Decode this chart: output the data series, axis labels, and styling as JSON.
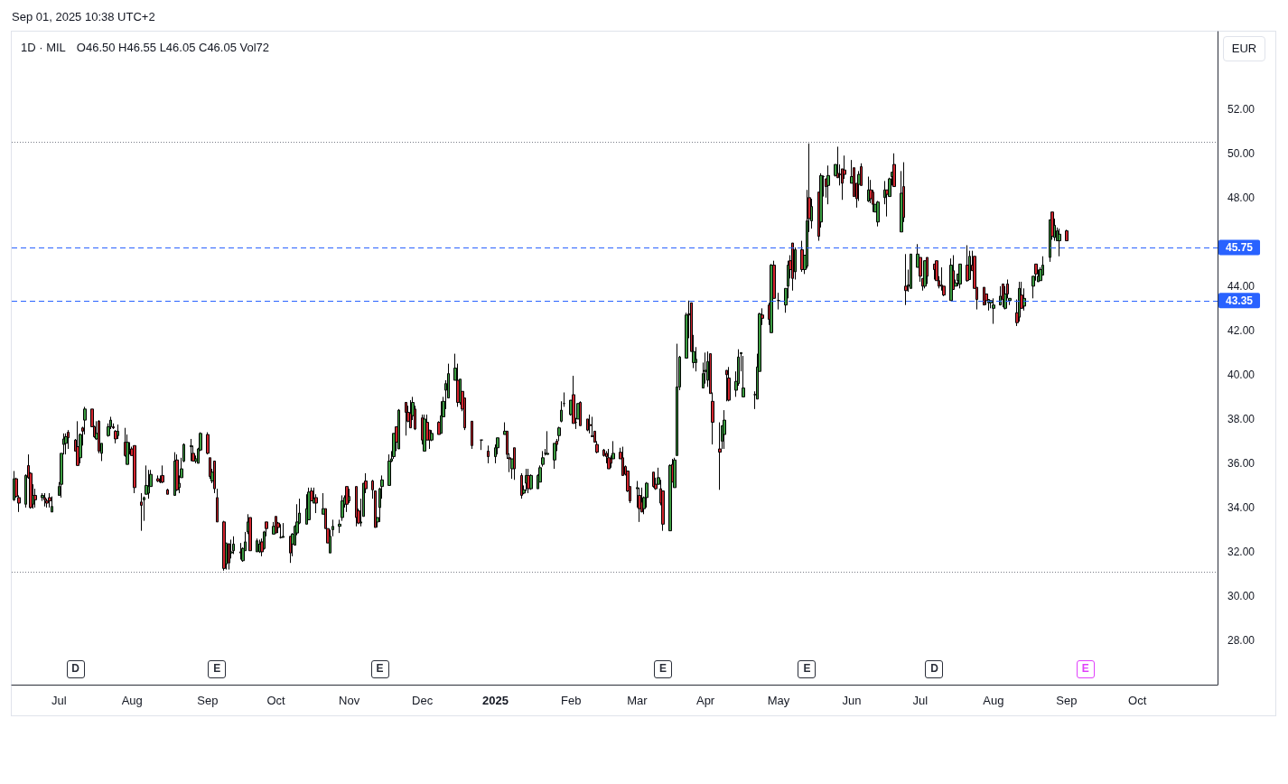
{
  "chart_data": {
    "type": "candlestick",
    "title": "1D · MIL",
    "subtitle": "Sep 01, 2025 10:38 UTC+2",
    "ylabel": "EUR",
    "annotations": [
      "O46.50 H46.55 L46.05 C46.05 Vol72",
      {
        "text": "D",
        "x": "2024-07-08"
      },
      {
        "text": "E",
        "x": "2024-09-06"
      },
      {
        "text": "E",
        "x": "2024-11-14"
      },
      {
        "text": "E",
        "x": "2025-03-14"
      },
      {
        "text": "E",
        "x": "2025-05-14"
      },
      {
        "text": "D",
        "x": "2025-07-07"
      },
      {
        "text": "E",
        "x": "2025-09-09"
      }
    ],
    "x": [
      "2024-06-12",
      "2024-06-13",
      "2024-06-14",
      "2024-06-17",
      "2024-06-18",
      "2024-06-19",
      "2024-06-20",
      "2024-06-21",
      "2024-06-24",
      "2024-06-25",
      "2024-06-26",
      "2024-06-27",
      "2024-06-28",
      "2024-07-01",
      "2024-07-02",
      "2024-07-03",
      "2024-07-04",
      "2024-07-05",
      "2024-07-08",
      "2024-07-09",
      "2024-07-10",
      "2024-07-11",
      "2024-07-12",
      "2024-07-15",
      "2024-07-16",
      "2024-07-17",
      "2024-07-18",
      "2024-07-19",
      "2024-07-22",
      "2024-07-23",
      "2024-07-24",
      "2024-07-25",
      "2024-07-26",
      "2024-07-29",
      "2024-07-30",
      "2024-07-31",
      "2024-08-01",
      "2024-08-02",
      "2024-08-05",
      "2024-08-06",
      "2024-08-07",
      "2024-08-08",
      "2024-08-09",
      "2024-08-12",
      "2024-08-13",
      "2024-08-14",
      "2024-08-16",
      "2024-08-19",
      "2024-08-20",
      "2024-08-21",
      "2024-08-22",
      "2024-08-23",
      "2024-08-26",
      "2024-08-27",
      "2024-08-28",
      "2024-08-29",
      "2024-08-30",
      "2024-09-02",
      "2024-09-03",
      "2024-09-04",
      "2024-09-05",
      "2024-09-06",
      "2024-09-09",
      "2024-09-10",
      "2024-09-11",
      "2024-09-12",
      "2024-09-13",
      "2024-09-16",
      "2024-09-17",
      "2024-09-18",
      "2024-09-19",
      "2024-09-20",
      "2024-09-23",
      "2024-09-24",
      "2024-09-25",
      "2024-09-26",
      "2024-09-27",
      "2024-09-30",
      "2024-10-01",
      "2024-10-02",
      "2024-10-03",
      "2024-10-04",
      "2024-10-07",
      "2024-10-08",
      "2024-10-09",
      "2024-10-10",
      "2024-10-11",
      "2024-10-14",
      "2024-10-15",
      "2024-10-16",
      "2024-10-17",
      "2024-10-18",
      "2024-10-21",
      "2024-10-22",
      "2024-10-23",
      "2024-10-24",
      "2024-10-25",
      "2024-10-28",
      "2024-10-29",
      "2024-10-30",
      "2024-10-31",
      "2024-11-01",
      "2024-11-04",
      "2024-11-05",
      "2024-11-06",
      "2024-11-07",
      "2024-11-08",
      "2024-11-11",
      "2024-11-12",
      "2024-11-13",
      "2024-11-14",
      "2024-11-15",
      "2024-11-18",
      "2024-11-19",
      "2024-11-20",
      "2024-11-21",
      "2024-11-22",
      "2024-11-25",
      "2024-11-26",
      "2024-11-27",
      "2024-11-28",
      "2024-11-29",
      "2024-12-02",
      "2024-12-03",
      "2024-12-04",
      "2024-12-05",
      "2024-12-06",
      "2024-12-09",
      "2024-12-10",
      "2024-12-11",
      "2024-12-12",
      "2024-12-13",
      "2024-12-16",
      "2024-12-17",
      "2024-12-18",
      "2024-12-19",
      "2024-12-20",
      "2024-12-23",
      "2024-12-27",
      "2024-12-30",
      "2025-01-02",
      "2025-01-03",
      "2025-01-06",
      "2025-01-07",
      "2025-01-08",
      "2025-01-09",
      "2025-01-10",
      "2025-01-13",
      "2025-01-14",
      "2025-01-15",
      "2025-01-16",
      "2025-01-17",
      "2025-01-20",
      "2025-01-21",
      "2025-01-22",
      "2025-01-23",
      "2025-01-24",
      "2025-01-27",
      "2025-01-28",
      "2025-01-29",
      "2025-01-30",
      "2025-01-31",
      "2025-02-03",
      "2025-02-04",
      "2025-02-05",
      "2025-02-06",
      "2025-02-07",
      "2025-02-10",
      "2025-02-11",
      "2025-02-12",
      "2025-02-13",
      "2025-02-14",
      "2025-02-17",
      "2025-02-18",
      "2025-02-19",
      "2025-02-20",
      "2025-02-21",
      "2025-02-24",
      "2025-02-25",
      "2025-02-26",
      "2025-02-27",
      "2025-02-28",
      "2025-03-03",
      "2025-03-04",
      "2025-03-05",
      "2025-03-06",
      "2025-03-07",
      "2025-03-10",
      "2025-03-11",
      "2025-03-12",
      "2025-03-13",
      "2025-03-14",
      "2025-03-17",
      "2025-03-18",
      "2025-03-19",
      "2025-03-20",
      "2025-03-21",
      "2025-03-24",
      "2025-03-25",
      "2025-03-26",
      "2025-03-27",
      "2025-03-28",
      "2025-03-31",
      "2025-04-01",
      "2025-04-02",
      "2025-04-03",
      "2025-04-04",
      "2025-04-07",
      "2025-04-08",
      "2025-04-09",
      "2025-04-10",
      "2025-04-11",
      "2025-04-14",
      "2025-04-15",
      "2025-04-16",
      "2025-04-17",
      "2025-04-22",
      "2025-04-23",
      "2025-04-24",
      "2025-04-25",
      "2025-04-28",
      "2025-04-29",
      "2025-04-30",
      "2025-05-02",
      "2025-05-05",
      "2025-05-06",
      "2025-05-07",
      "2025-05-08",
      "2025-05-09",
      "2025-05-12",
      "2025-05-13",
      "2025-05-14",
      "2025-05-15",
      "2025-05-16",
      "2025-05-19",
      "2025-05-20",
      "2025-05-21",
      "2025-05-22",
      "2025-05-23",
      "2025-05-26",
      "2025-05-27",
      "2025-05-28",
      "2025-05-29",
      "2025-05-30",
      "2025-06-02",
      "2025-06-03",
      "2025-06-04",
      "2025-06-05",
      "2025-06-06",
      "2025-06-09",
      "2025-06-10",
      "2025-06-11",
      "2025-06-12",
      "2025-06-13",
      "2025-06-16",
      "2025-06-17",
      "2025-06-18",
      "2025-06-19",
      "2025-06-20",
      "2025-06-23",
      "2025-06-24",
      "2025-06-25",
      "2025-06-26",
      "2025-06-27",
      "2025-06-30",
      "2025-07-01",
      "2025-07-02",
      "2025-07-03",
      "2025-07-04",
      "2025-07-07",
      "2025-07-08",
      "2025-07-09",
      "2025-07-10",
      "2025-07-11",
      "2025-07-14",
      "2025-07-15",
      "2025-07-16",
      "2025-07-17",
      "2025-07-18",
      "2025-07-21",
      "2025-07-22",
      "2025-07-23",
      "2025-07-24",
      "2025-07-25",
      "2025-07-28",
      "2025-07-29",
      "2025-07-30",
      "2025-07-31",
      "2025-08-01",
      "2025-08-04",
      "2025-08-05",
      "2025-08-06",
      "2025-08-07",
      "2025-08-08",
      "2025-08-11",
      "2025-08-12",
      "2025-08-13",
      "2025-08-14",
      "2025-08-18",
      "2025-08-19",
      "2025-08-20",
      "2025-08-21",
      "2025-08-22",
      "2025-08-25",
      "2025-08-26",
      "2025-08-27",
      "2025-08-28",
      "2025-08-29",
      "2025-09-01"
    ],
    "ohlc": [
      [
        34.35,
        35.65,
        34.3,
        35.3
      ],
      [
        35.3,
        35.35,
        34.45,
        34.5
      ],
      [
        34.45,
        34.55,
        33.8,
        34.2
      ],
      [
        34.15,
        35.5,
        34.0,
        35.45
      ],
      [
        35.9,
        36.4,
        35.3,
        35.35
      ],
      [
        35.55,
        35.6,
        33.95,
        34.0
      ],
      [
        34.15,
        35.05,
        33.95,
        34.55
      ],
      [
        34.55,
        34.85,
        34.0,
        34.35
      ],
      [
        34.45,
        34.65,
        34.3,
        34.55
      ],
      [
        34.45,
        34.65,
        34.05,
        34.35
      ],
      [
        34.3,
        34.4,
        34.0,
        34.2
      ],
      [
        34.45,
        34.65,
        34.0,
        34.3
      ],
      [
        33.8,
        34.5,
        33.8,
        34.05
      ],
      [
        34.55,
        35.15,
        34.55,
        34.95
      ],
      [
        35.05,
        36.45,
        34.45,
        36.45
      ],
      [
        36.85,
        37.35,
        36.4,
        37.1
      ],
      [
        36.9,
        37.35,
        36.4,
        37.2
      ],
      [
        37.4,
        37.5,
        36.65,
        37.15
      ],
      [
        37.05,
        37.1,
        36.55,
        36.55
      ],
      [
        36.75,
        37.9,
        35.9,
        35.9
      ],
      [
        36.25,
        37.35,
        36.0,
        37.3
      ],
      [
        37.6,
        37.65,
        36.8,
        37.45
      ],
      [
        37.95,
        38.55,
        37.3,
        38.45
      ],
      [
        38.45,
        38.45,
        37.65,
        37.65
      ],
      [
        37.65,
        37.7,
        37.15,
        37.2
      ],
      [
        37.1,
        37.9,
        37.05,
        37.35
      ],
      [
        37.9,
        37.95,
        36.45,
        36.55
      ],
      [
        36.45,
        36.9,
        36.1,
        36.9
      ],
      [
        37.25,
        37.8,
        37.2,
        37.65
      ],
      [
        37.65,
        38.1,
        37.55,
        37.95
      ],
      [
        37.65,
        37.8,
        37.55,
        37.6
      ],
      [
        37.45,
        37.5,
        36.9,
        37.1
      ],
      [
        37.25,
        37.75,
        37.1,
        37.45
      ],
      [
        36.95,
        37.6,
        36.3,
        36.35
      ],
      [
        35.95,
        37.3,
        35.95,
        36.95
      ],
      [
        36.55,
        36.95,
        36.4,
        36.6
      ],
      [
        36.65,
        36.75,
        36.35,
        36.35
      ],
      [
        36.8,
        36.8,
        34.65,
        34.9
      ],
      [
        34.25,
        34.65,
        32.95,
        34.1
      ],
      [
        34.35,
        34.5,
        33.4,
        34.45
      ],
      [
        34.6,
        35.9,
        34.6,
        35.0
      ],
      [
        34.65,
        35.7,
        34.4,
        34.95
      ],
      [
        34.95,
        35.7,
        34.95,
        35.5
      ],
      [
        35.3,
        35.45,
        35.15,
        35.2
      ],
      [
        35.2,
        35.45,
        35.1,
        35.15
      ],
      [
        35.45,
        35.9,
        35.1,
        35.15
      ],
      [
        34.8,
        34.85,
        34.6,
        34.6
      ],
      [
        34.55,
        36.5,
        34.55,
        36.1
      ],
      [
        36.15,
        36.4,
        34.75,
        34.8
      ],
      [
        34.9,
        35.45,
        34.65,
        35.1
      ],
      [
        35.35,
        36.25,
        35.35,
        35.75
      ],
      [
        36.1,
        36.9,
        36.05,
        36.85
      ],
      [
        36.75,
        37.1,
        36.1,
        36.8
      ],
      [
        36.45,
        36.8,
        36.1,
        36.1
      ],
      [
        36.1,
        36.35,
        36.0,
        36.2
      ],
      [
        36.0,
        36.7,
        36.0,
        36.65
      ],
      [
        36.6,
        37.4,
        36.55,
        37.35
      ],
      [
        37.3,
        37.4,
        36.4,
        36.45
      ],
      [
        36.25,
        36.25,
        35.3,
        35.4
      ],
      [
        35.2,
        35.75,
        35.1,
        35.6
      ],
      [
        36.1,
        36.1,
        34.65,
        34.85
      ],
      [
        34.45,
        34.85,
        33.35,
        33.35
      ],
      [
        33.35,
        33.4,
        31.15,
        31.25
      ],
      [
        31.45,
        32.4,
        31.2,
        32.4
      ],
      [
        32.35,
        32.4,
        31.2,
        31.5
      ],
      [
        31.95,
        32.55,
        31.7,
        32.0
      ],
      [
        32.05,
        32.7,
        31.9,
        32.35
      ],
      [
        32.0,
        32.4,
        31.65,
        31.95
      ],
      [
        31.6,
        32.2,
        31.55,
        32.15
      ],
      [
        32.05,
        32.9,
        32.05,
        32.45
      ],
      [
        32.9,
        33.7,
        32.8,
        33.35
      ],
      [
        33.55,
        33.55,
        32.05,
        32.05
      ],
      [
        32.0,
        32.6,
        32.0,
        32.5
      ],
      [
        32.0,
        32.55,
        31.95,
        32.35
      ],
      [
        32.45,
        32.6,
        31.8,
        32.0
      ],
      [
        32.15,
        32.95,
        32.1,
        32.9
      ],
      [
        33.35,
        33.35,
        32.7,
        33.05
      ],
      [
        32.8,
        33.35,
        32.8,
        33.15
      ],
      [
        33.6,
        33.6,
        32.85,
        32.85
      ],
      [
        33.3,
        33.35,
        32.85,
        33.1
      ],
      [
        32.65,
        33.25,
        32.6,
        32.65
      ],
      [
        32.65,
        33.3,
        32.65,
        32.7
      ],
      [
        32.7,
        32.7,
        31.5,
        31.95
      ],
      [
        32.35,
        32.85,
        31.8,
        32.8
      ],
      [
        32.3,
        33.2,
        32.3,
        33.15
      ],
      [
        32.85,
        34.15,
        32.75,
        33.35
      ],
      [
        33.3,
        34.4,
        33.25,
        33.75
      ],
      [
        33.25,
        34.6,
        33.25,
        33.95
      ],
      [
        33.45,
        34.9,
        33.45,
        34.7
      ],
      [
        34.75,
        34.9,
        34.3,
        34.3
      ],
      [
        34.2,
        34.9,
        34.2,
        34.4
      ],
      [
        34.45,
        34.6,
        33.75,
        34.2
      ],
      [
        33.7,
        34.65,
        33.7,
        33.95
      ],
      [
        33.95,
        33.95,
        33.05,
        33.05
      ],
      [
        33.05,
        33.05,
        32.4,
        32.4
      ],
      [
        31.95,
        33.0,
        31.95,
        32.7
      ],
      [
        33.0,
        33.45,
        32.7,
        33.15
      ],
      [
        33.15,
        33.45,
        32.85,
        33.25
      ],
      [
        33.55,
        34.55,
        33.4,
        34.3
      ],
      [
        34.15,
        34.55,
        34.0,
        34.45
      ],
      [
        34.95,
        34.95,
        33.8,
        34.15
      ],
      [
        34.3,
        34.85,
        34.2,
        34.5
      ],
      [
        34.95,
        34.95,
        33.15,
        33.55
      ],
      [
        33.85,
        33.95,
        33.25,
        33.3
      ],
      [
        33.3,
        34.4,
        33.15,
        33.35
      ],
      [
        33.6,
        35.1,
        33.6,
        35.1
      ],
      [
        35.2,
        35.55,
        34.65,
        34.85
      ],
      [
        35.2,
        35.25,
        34.4,
        34.8
      ],
      [
        34.75,
        34.75,
        33.1,
        33.1
      ],
      [
        33.35,
        33.55,
        33.1,
        33.55
      ],
      [
        34.0,
        34.9,
        33.35,
        34.85
      ],
      [
        34.95,
        35.45,
        34.4,
        35.25
      ],
      [
        35.0,
        36.4,
        35.0,
        36.1
      ],
      [
        36.1,
        36.55,
        36.05,
        36.2
      ],
      [
        36.3,
        37.35,
        36.2,
        37.35
      ],
      [
        37.65,
        37.65,
        36.55,
        36.95
      ],
      [
        36.65,
        38.45,
        36.65,
        38.4
      ],
      [
        38.75,
        38.75,
        37.25,
        38.3
      ],
      [
        38.3,
        38.6,
        37.85,
        37.9
      ],
      [
        38.25,
        38.85,
        37.6,
        37.6
      ],
      [
        38.15,
        39.0,
        37.95,
        38.75
      ],
      [
        38.45,
        38.6,
        37.5,
        37.55
      ],
      [
        38.05,
        38.2,
        36.85,
        37.05
      ],
      [
        36.55,
        38.2,
        36.55,
        38.0
      ],
      [
        37.85,
        38.2,
        37.05,
        37.05
      ],
      [
        37.5,
        37.5,
        36.65,
        37.05
      ],
      [
        37.05,
        37.5,
        37.0,
        37.35
      ],
      [
        37.85,
        37.9,
        37.3,
        37.3
      ],
      [
        37.35,
        38.8,
        37.35,
        38.15
      ],
      [
        38.1,
        39.0,
        38.1,
        38.8
      ],
      [
        39.3,
        39.75,
        38.45,
        39.6
      ],
      [
        38.95,
        40.5,
        38.95,
        40.05
      ],
      [
        39.75,
        40.95,
        39.75,
        40.3
      ],
      [
        39.75,
        40.5,
        38.55,
        38.75
      ],
      [
        38.75,
        39.8,
        38.65,
        39.8
      ],
      [
        39.25,
        39.25,
        38.35,
        38.45
      ],
      [
        38.95,
        38.95,
        37.5,
        37.6
      ],
      [
        37.9,
        37.9,
        36.65,
        36.8
      ],
      [
        37.05,
        37.05,
        36.6,
        37.05
      ],
      [
        36.55,
        36.8,
        36.0,
        36.3
      ],
      [
        36.3,
        36.85,
        36.0,
        36.7
      ],
      [
        36.7,
        37.15,
        36.4,
        37.15
      ],
      [
        37.3,
        37.85,
        37.3,
        37.45
      ],
      [
        37.45,
        37.45,
        36.2,
        36.4
      ],
      [
        36.25,
        36.45,
        35.6,
        36.2
      ],
      [
        35.75,
        36.2,
        35.3,
        36.2
      ],
      [
        36.7,
        36.7,
        35.25,
        35.75
      ],
      [
        35.45,
        35.55,
        34.4,
        34.55
      ],
      [
        34.65,
        35.0,
        34.6,
        34.8
      ],
      [
        35.1,
        35.75,
        34.75,
        35.45
      ],
      [
        35.45,
        35.75,
        34.65,
        34.85
      ],
      [
        34.85,
        35.5,
        34.8,
        35.45
      ],
      [
        34.85,
        35.5,
        34.85,
        35.45
      ],
      [
        35.15,
        35.9,
        35.15,
        35.8
      ],
      [
        35.95,
        36.55,
        35.85,
        36.25
      ],
      [
        36.45,
        36.65,
        36.35,
        36.45
      ],
      [
        36.4,
        37.45,
        36.4,
        36.45
      ],
      [
        36.15,
        36.9,
        35.75,
        36.9
      ],
      [
        37.0,
        37.1,
        36.55,
        36.85
      ],
      [
        37.25,
        37.65,
        37.0,
        37.6
      ],
      [
        37.9,
        38.8,
        37.85,
        38.4
      ],
      [
        38.7,
        39.2,
        38.55,
        38.7
      ],
      [
        38.2,
        38.85,
        38.15,
        38.85
      ],
      [
        39.1,
        39.95,
        37.8,
        37.8
      ],
      [
        37.85,
        38.05,
        37.55,
        37.85
      ],
      [
        38.0,
        38.7,
        38.0,
        38.7
      ],
      [
        38.75,
        38.8,
        37.7,
        37.7
      ],
      [
        38.0,
        38.0,
        37.45,
        37.5
      ],
      [
        37.75,
        38.2,
        37.35,
        37.7
      ],
      [
        37.25,
        38.1,
        37.2,
        37.2
      ],
      [
        37.45,
        37.45,
        36.95,
        36.95
      ],
      [
        36.85,
        37.0,
        36.45,
        36.5
      ],
      [
        36.6,
        36.65,
        36.3,
        36.35
      ],
      [
        36.45,
        36.55,
        36.0,
        36.3
      ],
      [
        36.25,
        36.65,
        35.75,
        35.75
      ],
      [
        36.2,
        36.35,
        35.8,
        36.0
      ],
      [
        36.2,
        37.0,
        36.2,
        36.45
      ],
      [
        36.5,
        36.7,
        36.2,
        36.2
      ],
      [
        36.25,
        36.75,
        35.45,
        35.45
      ],
      [
        35.85,
        35.9,
        35.45,
        35.5
      ],
      [
        35.65,
        35.65,
        34.7,
        34.75
      ],
      [
        34.95,
        34.95,
        34.2,
        34.3
      ],
      [
        34.85,
        35.2,
        34.0,
        34.9
      ],
      [
        34.55,
        34.9,
        33.35,
        33.95
      ],
      [
        34.25,
        34.9,
        33.8,
        33.8
      ],
      [
        33.95,
        34.5,
        33.7,
        34.45
      ],
      [
        34.45,
        35.15,
        34.0,
        35.1
      ],
      [
        35.6,
        35.6,
        34.9,
        34.95
      ],
      [
        35.05,
        35.35,
        34.8,
        34.85
      ],
      [
        35.05,
        35.8,
        35.05,
        35.35
      ],
      [
        34.85,
        35.25,
        34.1,
        34.2
      ],
      [
        34.75,
        34.75,
        32.95,
        33.25
      ],
      [
        32.95,
        35.95,
        32.95,
        35.9
      ],
      [
        35.95,
        36.2,
        35.15,
        35.15
      ],
      [
        34.9,
        36.25,
        34.9,
        36.15
      ],
      [
        36.35,
        41.4,
        36.35,
        39.45
      ],
      [
        39.45,
        40.85,
        39.3,
        40.8
      ],
      [
        40.75,
        42.8,
        40.75,
        42.7
      ],
      [
        42.75,
        43.35,
        41.65,
        42.7
      ],
      [
        43.25,
        43.25,
        41.05,
        41.05
      ],
      [
        40.55,
        41.8,
        40.3,
        41.05
      ],
      [
        40.55,
        41.25,
        40.15,
        40.7
      ],
      [
        39.4,
        40.55,
        39.4,
        40.05
      ],
      [
        40.15,
        41.0,
        39.6,
        40.2
      ],
      [
        39.75,
        41.05,
        39.45,
        40.6
      ],
      [
        40.95,
        40.95,
        39.15,
        39.15
      ],
      [
        38.8,
        39.2,
        36.85,
        37.85
      ],
      [
        36.65,
        37.85,
        34.8,
        36.5
      ],
      [
        37.0,
        37.7,
        36.65,
        37.7
      ],
      [
        37.3,
        38.4,
        36.65,
        37.95
      ],
      [
        40.2,
        40.2,
        38.8,
        40.0
      ],
      [
        39.85,
        40.35,
        38.8,
        38.85
      ],
      [
        39.3,
        40.15,
        39.0,
        39.7
      ],
      [
        39.6,
        41.15,
        39.5,
        40.8
      ],
      [
        40.95,
        41.0,
        40.15,
        41.0
      ],
      [
        39.0,
        40.85,
        39.0,
        39.4
      ],
      [
        39.1,
        39.25,
        38.45,
        39.1
      ],
      [
        38.9,
        40.95,
        38.9,
        40.35
      ],
      [
        40.15,
        42.8,
        40.15,
        42.75
      ],
      [
        42.7,
        43.0,
        42.25,
        42.55
      ],
      [
        43.15,
        43.25,
        42.25,
        42.5
      ],
      [
        41.9,
        45.0,
        41.9,
        44.95
      ],
      [
        44.95,
        45.15,
        43.45,
        43.45
      ],
      [
        43.35,
        43.7,
        42.95,
        43.35
      ],
      [
        43.15,
        43.9,
        42.8,
        43.9
      ],
      [
        44.0,
        45.15,
        43.45,
        44.95
      ],
      [
        45.15,
        45.4,
        44.35,
        44.75
      ],
      [
        45.95,
        45.95,
        43.8,
        44.35
      ],
      [
        44.65,
        45.75,
        44.3,
        45.65
      ],
      [
        45.65,
        46.05,
        44.65,
        44.75
      ],
      [
        44.75,
        45.4,
        44.55,
        45.4
      ],
      [
        44.9,
        48.35,
        44.8,
        46.95
      ],
      [
        48.0,
        50.45,
        46.45,
        47.05
      ],
      [
        46.95,
        47.95,
        46.6,
        47.6
      ],
      [
        48.25,
        48.25,
        46.05,
        46.25
      ],
      [
        46.9,
        49.1,
        46.65,
        49.0
      ],
      [
        48.95,
        49.0,
        48.05,
        48.95
      ],
      [
        48.85,
        48.85,
        48.0,
        48.5
      ],
      [
        48.55,
        49.45,
        47.7,
        49.0
      ],
      [
        49.0,
        49.5,
        48.95,
        49.5
      ],
      [
        49.1,
        50.3,
        48.9,
        48.9
      ],
      [
        49.05,
        49.5,
        48.55,
        49.05
      ],
      [
        49.3,
        49.3,
        47.9,
        48.65
      ],
      [
        49.25,
        49.9,
        48.85,
        49.05
      ],
      [
        48.65,
        49.7,
        48.65,
        48.95
      ],
      [
        49.35,
        49.35,
        48.05,
        48.05
      ],
      [
        48.65,
        48.65,
        47.55,
        47.95
      ],
      [
        48.6,
        49.2,
        47.85,
        49.05
      ],
      [
        49.4,
        49.55,
        48.55,
        48.55
      ],
      [
        47.85,
        48.95,
        47.8,
        48.35
      ],
      [
        48.35,
        48.8,
        47.75,
        47.95
      ],
      [
        48.25,
        48.35,
        47.35,
        47.7
      ],
      [
        47.35,
        47.7,
        47.35,
        47.7
      ],
      [
        46.9,
        47.85,
        46.7,
        47.8
      ],
      [
        48.0,
        48.75,
        47.7,
        48.35
      ],
      [
        48.35,
        48.35,
        47.15,
        48.15
      ],
      [
        48.05,
        48.9,
        48.05,
        48.85
      ],
      [
        48.95,
        49.15,
        48.55,
        49.15
      ],
      [
        49.5,
        50.0,
        48.5,
        48.5
      ],
      [
        46.45,
        49.2,
        46.45,
        48.2
      ],
      [
        48.5,
        49.6,
        46.9,
        47.1
      ],
      [
        44.0,
        45.45,
        43.15,
        43.8
      ],
      [
        44.0,
        44.75,
        43.75,
        44.05
      ],
      [
        43.9,
        45.45,
        43.9,
        45.45
      ],
      [
        44.85,
        45.9,
        44.85,
        45.45
      ],
      [
        45.3,
        45.3,
        44.2,
        44.45
      ],
      [
        44.35,
        44.35,
        43.8,
        44.0
      ],
      [
        44.0,
        45.15,
        43.9,
        45.15
      ],
      [
        45.3,
        45.3,
        44.1,
        44.45
      ],
      [
        45.0,
        45.0,
        44.3,
        44.75
      ],
      [
        45.15,
        45.15,
        44.25,
        44.25
      ],
      [
        44.25,
        44.45,
        43.9,
        44.0
      ],
      [
        44.05,
        44.85,
        43.8,
        44.0
      ],
      [
        44.0,
        44.0,
        43.55,
        43.6
      ],
      [
        43.35,
        45.25,
        43.35,
        44.95
      ],
      [
        44.7,
        45.4,
        43.85,
        43.85
      ],
      [
        44.0,
        44.3,
        44.0,
        44.15
      ],
      [
        44.25,
        44.55,
        44.0,
        44.55
      ],
      [
        44.1,
        45.0,
        43.9,
        45.0
      ],
      [
        44.95,
        45.85,
        44.2,
        44.25
      ],
      [
        44.3,
        45.6,
        44.3,
        45.35
      ],
      [
        44.95,
        45.6,
        44.7,
        44.7
      ],
      [
        45.35,
        45.35,
        43.9,
        43.9
      ],
      [
        43.95,
        43.95,
        42.95,
        43.4
      ],
      [
        43.95,
        43.95,
        43.15,
        43.15
      ],
      [
        43.65,
        43.65,
        43.15,
        43.35
      ],
      [
        43.25,
        43.4,
        42.9,
        43.4
      ],
      [
        43.25,
        43.35,
        43.0,
        43.35
      ],
      [
        43.0,
        43.45,
        42.3,
        43.15
      ],
      [
        43.15,
        44.0,
        43.15,
        43.55
      ],
      [
        44.1,
        44.1,
        43.05,
        43.4
      ],
      [
        43.0,
        44.0,
        42.95,
        43.65
      ],
      [
        44.1,
        44.3,
        43.45,
        43.65
      ],
      [
        43.35,
        43.45,
        43.15,
        43.45
      ],
      [
        42.8,
        43.4,
        42.2,
        42.35
      ],
      [
        42.6,
        44.2,
        42.4,
        43.9
      ],
      [
        43.6,
        44.2,
        43.0,
        43.0
      ],
      [
        43.1,
        43.9,
        42.9,
        43.45
      ],
      [
        44.0,
        44.45,
        43.45,
        44.45
      ],
      [
        45.0,
        45.0,
        44.25,
        44.55
      ],
      [
        44.2,
        44.75,
        44.2,
        44.45
      ],
      [
        44.25,
        44.85,
        44.25,
        44.75
      ],
      [
        44.5,
        45.35,
        44.5,
        44.95
      ],
      [
        45.3,
        47.0,
        45.1,
        47.0
      ],
      [
        47.35,
        47.35,
        46.1,
        46.25
      ],
      [
        46.2,
        47.05,
        46.05,
        46.75
      ],
      [
        46.05,
        46.65,
        46.05,
        46.5
      ],
      [
        46.05,
        46.6,
        45.35,
        46.35
      ],
      [
        46.5,
        46.55,
        46.05,
        46.05
      ]
    ],
    "colors": [
      "#3c9c41",
      "#d1262f",
      "#d1262f",
      "#3c9c41",
      "#d1262f",
      "#d1262f",
      "#3c9c41",
      "#d1262f",
      "#3c9c41",
      "#d1262f",
      "#d1262f",
      "#d1262f",
      "#3c9c41",
      "#3c9c41",
      "#3c9c41",
      "#3c9c41",
      "#3c9c41",
      "#d1262f",
      "#d1262f",
      "#d1262f",
      "#3c9c41",
      "#d1262f",
      "#3c9c41",
      "#d1262f",
      "#d1262f",
      "#3c9c41",
      "#d1262f",
      "#3c9c41",
      "#3c9c41",
      "#3c9c41",
      "#d1262f",
      "#d1262f",
      "#3c9c41",
      "#d1262f",
      "#3c9c41",
      "#3c9c41",
      "#d1262f",
      "#d1262f",
      "#d1262f",
      "#3c9c41",
      "#3c9c41",
      "#3c9c41",
      "#3c9c41",
      "#d1262f",
      "#d1262f",
      "#d1262f",
      "#d1262f",
      "#3c9c41",
      "#d1262f",
      "#3c9c41",
      "#3c9c41",
      "#3c9c41",
      "#3c9c41",
      "#d1262f",
      "#3c9c41",
      "#3c9c41",
      "#3c9c41",
      "#d1262f",
      "#d1262f",
      "#3c9c41",
      "#d1262f",
      "#d1262f",
      "#d1262f",
      "#3c9c41",
      "#d1262f",
      "#3c9c41",
      "#3c9c41",
      "#d1262f",
      "#3c9c41",
      "#3c9c41",
      "#3c9c41",
      "#d1262f",
      "#3c9c41",
      "#3c9c41",
      "#d1262f",
      "#3c9c41",
      "#d1262f",
      "#3c9c41",
      "#d1262f",
      "#d1262f",
      "#000000",
      "#3c9c41",
      "#d1262f",
      "#3c9c41",
      "#3c9c41",
      "#3c9c41",
      "#3c9c41",
      "#3c9c41",
      "#3c9c41",
      "#d1262f",
      "#3c9c41",
      "#d1262f",
      "#3c9c41",
      "#d1262f",
      "#d1262f",
      "#3c9c41",
      "#3c9c41",
      "#3c9c41",
      "#3c9c41",
      "#3c9c41",
      "#d1262f",
      "#3c9c41",
      "#d1262f",
      "#d1262f",
      "#3c9c41",
      "#3c9c41",
      "#d1262f",
      "#d1262f",
      "#d1262f",
      "#3c9c41",
      "#3c9c41",
      "#3c9c41",
      "#3c9c41",
      "#3c9c41",
      "#3c9c41",
      "#d1262f",
      "#3c9c41",
      "#d1262f",
      "#d1262f",
      "#d1262f",
      "#3c9c41",
      "#d1262f",
      "#d1262f",
      "#3c9c41",
      "#d1262f",
      "#d1262f",
      "#3c9c41",
      "#d1262f",
      "#3c9c41",
      "#3c9c41",
      "#3c9c41",
      "#3c9c41",
      "#3c9c41",
      "#d1262f",
      "#3c9c41",
      "#d1262f",
      "#d1262f",
      "#d1262f",
      "#000000",
      "#d1262f",
      "#3c9c41",
      "#3c9c41",
      "#3c9c41",
      "#d1262f",
      "#d1262f",
      "#3c9c41",
      "#d1262f",
      "#d1262f",
      "#3c9c41",
      "#3c9c41",
      "#d1262f",
      "#3c9c41",
      "#3c9c41",
      "#3c9c41",
      "#3c9c41",
      "#000000",
      "#3c9c41",
      "#3c9c41",
      "#d1262f",
      "#3c9c41",
      "#3c9c41",
      "#000000",
      "#3c9c41",
      "#d1262f",
      "#000000",
      "#3c9c41",
      "#d1262f",
      "#d1262f",
      "#d1262f",
      "#d1262f",
      "#d1262f",
      "#d1262f",
      "#d1262f",
      "#d1262f",
      "#d1262f",
      "#d1262f",
      "#3c9c41",
      "#d1262f",
      "#d1262f",
      "#d1262f",
      "#d1262f",
      "#d1262f",
      "#3c9c41",
      "#d1262f",
      "#d1262f",
      "#3c9c41",
      "#3c9c41",
      "#d1262f",
      "#d1262f",
      "#3c9c41",
      "#d1262f",
      "#d1262f",
      "#3c9c41",
      "#d1262f",
      "#3c9c41",
      "#3c9c41",
      "#3c9c41",
      "#3c9c41",
      "#d1262f",
      "#d1262f",
      "#3c9c41",
      "#3c9c41",
      "#3c9c41",
      "#3c9c41",
      "#3c9c41",
      "#d1262f",
      "#d1262f",
      "#d1262f",
      "#3c9c41",
      "#3c9c41",
      "#d1262f",
      "#d1262f",
      "#3c9c41",
      "#3c9c41",
      "#3c9c41",
      "#3c9c41",
      "#000000",
      "#3c9c41",
      "#3c9c41",
      "#d1262f",
      "#d1262f",
      "#3c9c41",
      "#d1262f",
      "#000000",
      "#3c9c41",
      "#3c9c41",
      "#d1262f",
      "#d1262f",
      "#3c9c41",
      "#d1262f",
      "#3c9c41",
      "#3c9c41",
      "#d1262f",
      "#3c9c41",
      "#d1262f",
      "#3c9c41",
      "#000000",
      "#d1262f",
      "#3c9c41",
      "#3c9c41",
      "#d1262f",
      "#000000",
      "#d1262f",
      "#d1262f",
      "#3c9c41",
      "#d1262f",
      "#d1262f",
      "#3c9c41",
      "#d1262f",
      "#3c9c41",
      "#d1262f",
      "#d1262f",
      "#3c9c41",
      "#3c9c41",
      "#3c9c41",
      "#d1262f",
      "#3c9c41",
      "#3c9c41",
      "#d1262f",
      "#3c9c41",
      "#d1262f",
      "#d1262f",
      "#3c9c41",
      "#3c9c41",
      "#3c9c41",
      "#d1262f",
      "#d1262f",
      "#3c9c41",
      "#d1262f",
      "#d1262f",
      "#d1262f",
      "#d1262f",
      "#d1262f",
      "#d1262f",
      "#3c9c41",
      "#d1262f",
      "#3c9c41",
      "#3c9c41",
      "#3c9c41",
      "#d1262f",
      "#3c9c41",
      "#d1262f",
      "#d1262f",
      "#d1262f",
      "#d1262f",
      "#d1262f",
      "#3c9c41",
      "#3c9c41",
      "#3c9c41",
      "#3c9c41",
      "#d1262f",
      "#3c9c41",
      "#d1262f",
      "#3c9c41",
      "#d1262f",
      "#3c9c41",
      "#d1262f",
      "#3c9c41",
      "#3c9c41",
      "#d1262f",
      "#3c9c41",
      "#3c9c41",
      "#3c9c41",
      "#3c9c41",
      "#d1262f",
      "#3c9c41",
      "#3c9c41",
      "#3c9c41",
      "#d1262f"
    ],
    "xlim": [
      "2024-06-11",
      "2025-11-04"
    ],
    "xticks": [
      {
        "value": "2024-07-01",
        "label": "Jul"
      },
      {
        "value": "2024-08-01",
        "label": "Aug"
      },
      {
        "value": "2024-09-02",
        "label": "Sep"
      },
      {
        "value": "2024-10-01",
        "label": "Oct"
      },
      {
        "value": "2024-11-01",
        "label": "Nov"
      },
      {
        "value": "2024-12-02",
        "label": "Dec"
      },
      {
        "value": "2025-01-02",
        "label": "2025"
      },
      {
        "value": "2025-02-03",
        "label": "Feb"
      },
      {
        "value": "2025-03-03",
        "label": "Mar"
      },
      {
        "value": "2025-04-01",
        "label": "Apr"
      },
      {
        "value": "2025-05-02",
        "label": "May"
      },
      {
        "value": "2025-06-02",
        "label": "Jun"
      },
      {
        "value": "2025-07-01",
        "label": "Jul"
      },
      {
        "value": "2025-08-01",
        "label": "Aug"
      },
      {
        "value": "2025-09-01",
        "label": "Sep"
      },
      {
        "value": "2025-10-01",
        "label": "Oct"
      }
    ],
    "ylim": [
      26,
      55.5
    ],
    "yticks": [
      {
        "value": 28,
        "label": "28.00"
      },
      {
        "value": 30,
        "label": "30.00"
      },
      {
        "value": 32,
        "label": "32.00"
      },
      {
        "value": 34,
        "label": "34.00"
      },
      {
        "value": 36,
        "label": "36.00"
      },
      {
        "value": 38,
        "label": "38.00"
      },
      {
        "value": 40,
        "label": "40.00"
      },
      {
        "value": 42,
        "label": "42.00"
      },
      {
        "value": 44,
        "label": "44.00"
      },
      {
        "value": 48,
        "label": "48.00"
      },
      {
        "value": 50,
        "label": "50.00"
      },
      {
        "value": 52,
        "label": "52.00"
      }
    ],
    "ref_lines": [
      {
        "axis": "y",
        "value": 50.5,
        "color": "#787b86",
        "line_style": "dotted"
      },
      {
        "axis": "y",
        "value": 45.75,
        "label": "45.75",
        "color": "#2962ff",
        "line_style": "dashed"
      },
      {
        "axis": "y",
        "value": 43.35,
        "label": "43.35",
        "color": "#2962ff",
        "line_style": "dashed"
      },
      {
        "axis": "y",
        "value": 31.1,
        "color": "#787b86",
        "line_style": "dotted"
      }
    ]
  }
}
